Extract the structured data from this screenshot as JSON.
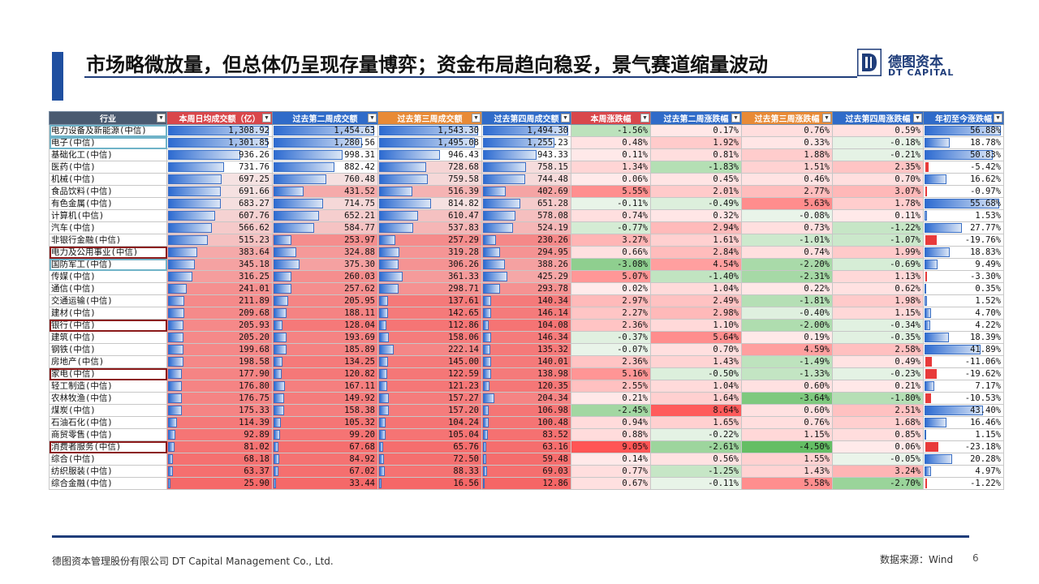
{
  "header": {
    "title": "市场略微放量，但总体仍呈现存量博弈；资金布局趋向稳妥，景气赛道缩量波动"
  },
  "logo": {
    "cn": "德图资本",
    "en": "DT CAPITAL"
  },
  "table": {
    "columns": [
      "行业",
      "本周日均成交额（亿）",
      "过去第二周成交额",
      "过去第三周成交额",
      "过去第四周成交额",
      "本周涨跌幅",
      "过去第二周涨跌幅",
      "过去第三周涨跌幅",
      "过去第四周涨跌幅",
      "年初至今涨跌幅"
    ],
    "header_colors": [
      "#4a5a70",
      "#d9474b",
      "#2f6bc9",
      "#e88a36",
      "#2f6bc9",
      "#d9474b",
      "#2f6bc9",
      "#e88a36",
      "#2f6bc9",
      "#2f6bc9"
    ],
    "rows": [
      [
        "电力设备及新能源(中信)",
        "1,308.92",
        "1,454.63",
        "1,543.30",
        "1,494.30",
        "-1.56%",
        "0.17%",
        "0.76%",
        "0.59%",
        "56.88%"
      ],
      [
        "电子(中信)",
        "1,301.85",
        "1,280.56",
        "1,495.08",
        "1,255.23",
        "0.48%",
        "1.92%",
        "0.33%",
        "-0.18%",
        "18.78%"
      ],
      [
        "基础化工(中信)",
        "936.26",
        "998.31",
        "946.43",
        "943.33",
        "0.11%",
        "0.81%",
        "1.88%",
        "-0.21%",
        "50.83%"
      ],
      [
        "医药(中信)",
        "731.76",
        "882.42",
        "728.68",
        "758.15",
        "1.34%",
        "-1.83%",
        "1.51%",
        "2.35%",
        "-5.42%"
      ],
      [
        "机械(中信)",
        "697.25",
        "760.48",
        "759.58",
        "744.48",
        "0.06%",
        "0.45%",
        "0.46%",
        "0.70%",
        "16.62%"
      ],
      [
        "食品饮料(中信)",
        "691.66",
        "431.52",
        "516.39",
        "402.69",
        "5.55%",
        "2.01%",
        "2.77%",
        "3.07%",
        "-0.97%"
      ],
      [
        "有色金属(中信)",
        "683.27",
        "714.75",
        "814.82",
        "651.28",
        "-0.11%",
        "-0.49%",
        "5.63%",
        "1.78%",
        "55.68%"
      ],
      [
        "计算机(中信)",
        "607.76",
        "652.21",
        "610.47",
        "578.08",
        "0.74%",
        "0.32%",
        "-0.08%",
        "0.11%",
        "1.53%"
      ],
      [
        "汽车(中信)",
        "566.62",
        "584.77",
        "537.83",
        "524.19",
        "-0.77%",
        "2.94%",
        "0.73%",
        "-1.22%",
        "27.77%"
      ],
      [
        "非银行金融(中信)",
        "515.23",
        "253.97",
        "257.29",
        "230.26",
        "3.27%",
        "1.61%",
        "-1.01%",
        "-1.07%",
        "-19.76%"
      ],
      [
        "电力及公用事业(中信)",
        "383.64",
        "324.88",
        "319.28",
        "294.95",
        "0.66%",
        "2.84%",
        "0.74%",
        "1.99%",
        "18.83%"
      ],
      [
        "国防军工(中信)",
        "345.18",
        "375.30",
        "306.26",
        "388.26",
        "-3.08%",
        "4.54%",
        "-2.20%",
        "-0.69%",
        "9.49%"
      ],
      [
        "传媒(中信)",
        "316.25",
        "260.03",
        "361.33",
        "425.29",
        "5.07%",
        "-1.40%",
        "-2.31%",
        "1.13%",
        "-3.30%"
      ],
      [
        "通信(中信)",
        "241.01",
        "257.62",
        "298.71",
        "293.78",
        "0.02%",
        "1.04%",
        "0.22%",
        "0.62%",
        "0.35%"
      ],
      [
        "交通运输(中信)",
        "211.89",
        "205.95",
        "137.61",
        "140.34",
        "2.97%",
        "2.49%",
        "-1.81%",
        "1.98%",
        "1.52%"
      ],
      [
        "建材(中信)",
        "209.68",
        "188.11",
        "142.65",
        "146.14",
        "2.27%",
        "2.98%",
        "-0.40%",
        "1.15%",
        "4.70%"
      ],
      [
        "银行(中信)",
        "205.93",
        "128.04",
        "112.86",
        "104.08",
        "2.36%",
        "1.10%",
        "-2.00%",
        "-0.34%",
        "4.22%"
      ],
      [
        "建筑(中信)",
        "205.20",
        "193.69",
        "158.06",
        "146.34",
        "-0.37%",
        "5.64%",
        "0.19%",
        "-0.35%",
        "18.39%"
      ],
      [
        "钢铁(中信)",
        "199.68",
        "185.89",
        "222.14",
        "135.32",
        "-0.07%",
        "0.70%",
        "4.59%",
        "2.58%",
        "41.89%"
      ],
      [
        "房地产(中信)",
        "198.58",
        "134.25",
        "145.00",
        "140.01",
        "2.36%",
        "1.43%",
        "-1.49%",
        "0.49%",
        "-11.06%"
      ],
      [
        "家电(中信)",
        "177.90",
        "120.82",
        "122.59",
        "138.98",
        "5.16%",
        "-0.50%",
        "-1.33%",
        "-0.23%",
        "-19.62%"
      ],
      [
        "轻工制造(中信)",
        "176.80",
        "167.11",
        "121.23",
        "120.35",
        "2.55%",
        "1.04%",
        "0.60%",
        "0.21%",
        "7.17%"
      ],
      [
        "农林牧渔(中信)",
        "176.75",
        "149.92",
        "157.27",
        "204.34",
        "0.21%",
        "1.64%",
        "-3.64%",
        "-1.80%",
        "-10.53%"
      ],
      [
        "煤炭(中信)",
        "175.33",
        "158.38",
        "157.20",
        "106.98",
        "-2.45%",
        "8.64%",
        "0.60%",
        "2.51%",
        "43.40%"
      ],
      [
        "石油石化(中信)",
        "114.39",
        "105.32",
        "104.24",
        "100.48",
        "0.94%",
        "1.65%",
        "0.76%",
        "1.68%",
        "16.46%"
      ],
      [
        "商贸零售(中信)",
        "92.89",
        "99.20",
        "105.04",
        "83.52",
        "0.88%",
        "-0.22%",
        "1.15%",
        "0.85%",
        "1.15%"
      ],
      [
        "消费者服务(中信)",
        "81.02",
        "67.68",
        "65.76",
        "63.16",
        "9.05%",
        "-2.61%",
        "-4.50%",
        "0.06%",
        "-23.18%"
      ],
      [
        "综合(中信)",
        "68.18",
        "84.92",
        "72.50",
        "59.48",
        "0.14%",
        "0.56%",
        "1.55%",
        "-0.05%",
        "20.28%"
      ],
      [
        "纺织服装(中信)",
        "63.37",
        "67.02",
        "88.33",
        "69.03",
        "0.77%",
        "-1.25%",
        "1.43%",
        "3.24%",
        "4.97%"
      ],
      [
        "综合金融(中信)",
        "25.90",
        "33.44",
        "16.56",
        "12.86",
        "0.67%",
        "-0.11%",
        "5.58%",
        "-2.70%",
        "-1.22%"
      ]
    ],
    "boxed_red_rows": [
      10,
      16,
      20,
      26
    ],
    "boxed_blue_rows": [
      0,
      1,
      11
    ]
  },
  "footer": {
    "company": "德图资本管理股份有限公司  DT Capital Management Co., Ltd.",
    "source": "数据来源：Wind",
    "page": "6"
  },
  "icons": {
    "logo_mark": "dt-logo-icon",
    "dropdown": "filter-dropdown-icon"
  }
}
